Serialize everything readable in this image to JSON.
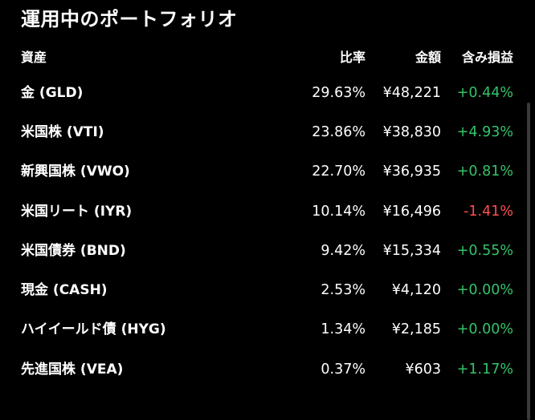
{
  "title": "運用中のポートフォリオ",
  "headers": {
    "asset": "資産",
    "ratio": "比率",
    "amount": "金額",
    "pl": "含み損益"
  },
  "rows": [
    {
      "name": "金 (GLD)",
      "ratio": "29.63%",
      "amount": "¥48,221",
      "pl": "+0.44%",
      "pl_sign": "pos"
    },
    {
      "name": "米国株 (VTI)",
      "ratio": "23.86%",
      "amount": "¥38,830",
      "pl": "+4.93%",
      "pl_sign": "pos"
    },
    {
      "name": "新興国株 (VWO)",
      "ratio": "22.70%",
      "amount": "¥36,935",
      "pl": "+0.81%",
      "pl_sign": "pos"
    },
    {
      "name": "米国リート (IYR)",
      "ratio": "10.14%",
      "amount": "¥16,496",
      "pl": "-1.41%",
      "pl_sign": "neg"
    },
    {
      "name": "米国債券 (BND)",
      "ratio": "9.42%",
      "amount": "¥15,334",
      "pl": "+0.55%",
      "pl_sign": "pos"
    },
    {
      "name": "現金 (CASH)",
      "ratio": "2.53%",
      "amount": "¥4,120",
      "pl": "+0.00%",
      "pl_sign": "zero"
    },
    {
      "name": "ハイイールド債 (HYG)",
      "ratio": "1.34%",
      "amount": "¥2,185",
      "pl": "+0.00%",
      "pl_sign": "zero"
    },
    {
      "name": "先進国株 (VEA)",
      "ratio": "0.37%",
      "amount": "¥603",
      "pl": "+1.17%",
      "pl_sign": "pos"
    }
  ],
  "colors": {
    "background": "#000000",
    "text": "#ffffff",
    "positive": "#34c36a",
    "negative": "#ff4d4f",
    "scrollbar": "#3a3a3c"
  }
}
